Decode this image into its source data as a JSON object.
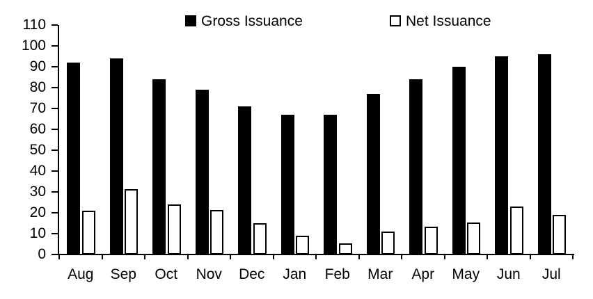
{
  "chart_data": {
    "type": "bar",
    "categories": [
      "Aug",
      "Sep",
      "Oct",
      "Nov",
      "Dec",
      "Jan",
      "Feb",
      "Mar",
      "Apr",
      "May",
      "Jun",
      "Jul"
    ],
    "series": [
      {
        "name": "Gross Issuance",
        "marker": "filled-square",
        "fill": "#000000",
        "values": [
          92,
          94,
          84,
          79,
          71,
          67,
          67,
          77,
          84,
          90,
          95,
          96
        ]
      },
      {
        "name": "Net Issuance",
        "marker": "open-square",
        "fill": "#ffffff",
        "border": "#000000",
        "values": [
          21,
          31.5,
          24,
          21.5,
          15,
          9,
          5.5,
          11,
          13.5,
          15.5,
          23,
          19
        ]
      }
    ],
    "title": "",
    "xlabel": "",
    "ylabel": "",
    "ylim": [
      0,
      110
    ],
    "yticks": [
      0,
      10,
      20,
      30,
      40,
      50,
      60,
      70,
      80,
      90,
      100,
      110
    ],
    "grid": false,
    "legend_position": "top",
    "axis_color": "#000000",
    "background_color": "#ffffff"
  }
}
